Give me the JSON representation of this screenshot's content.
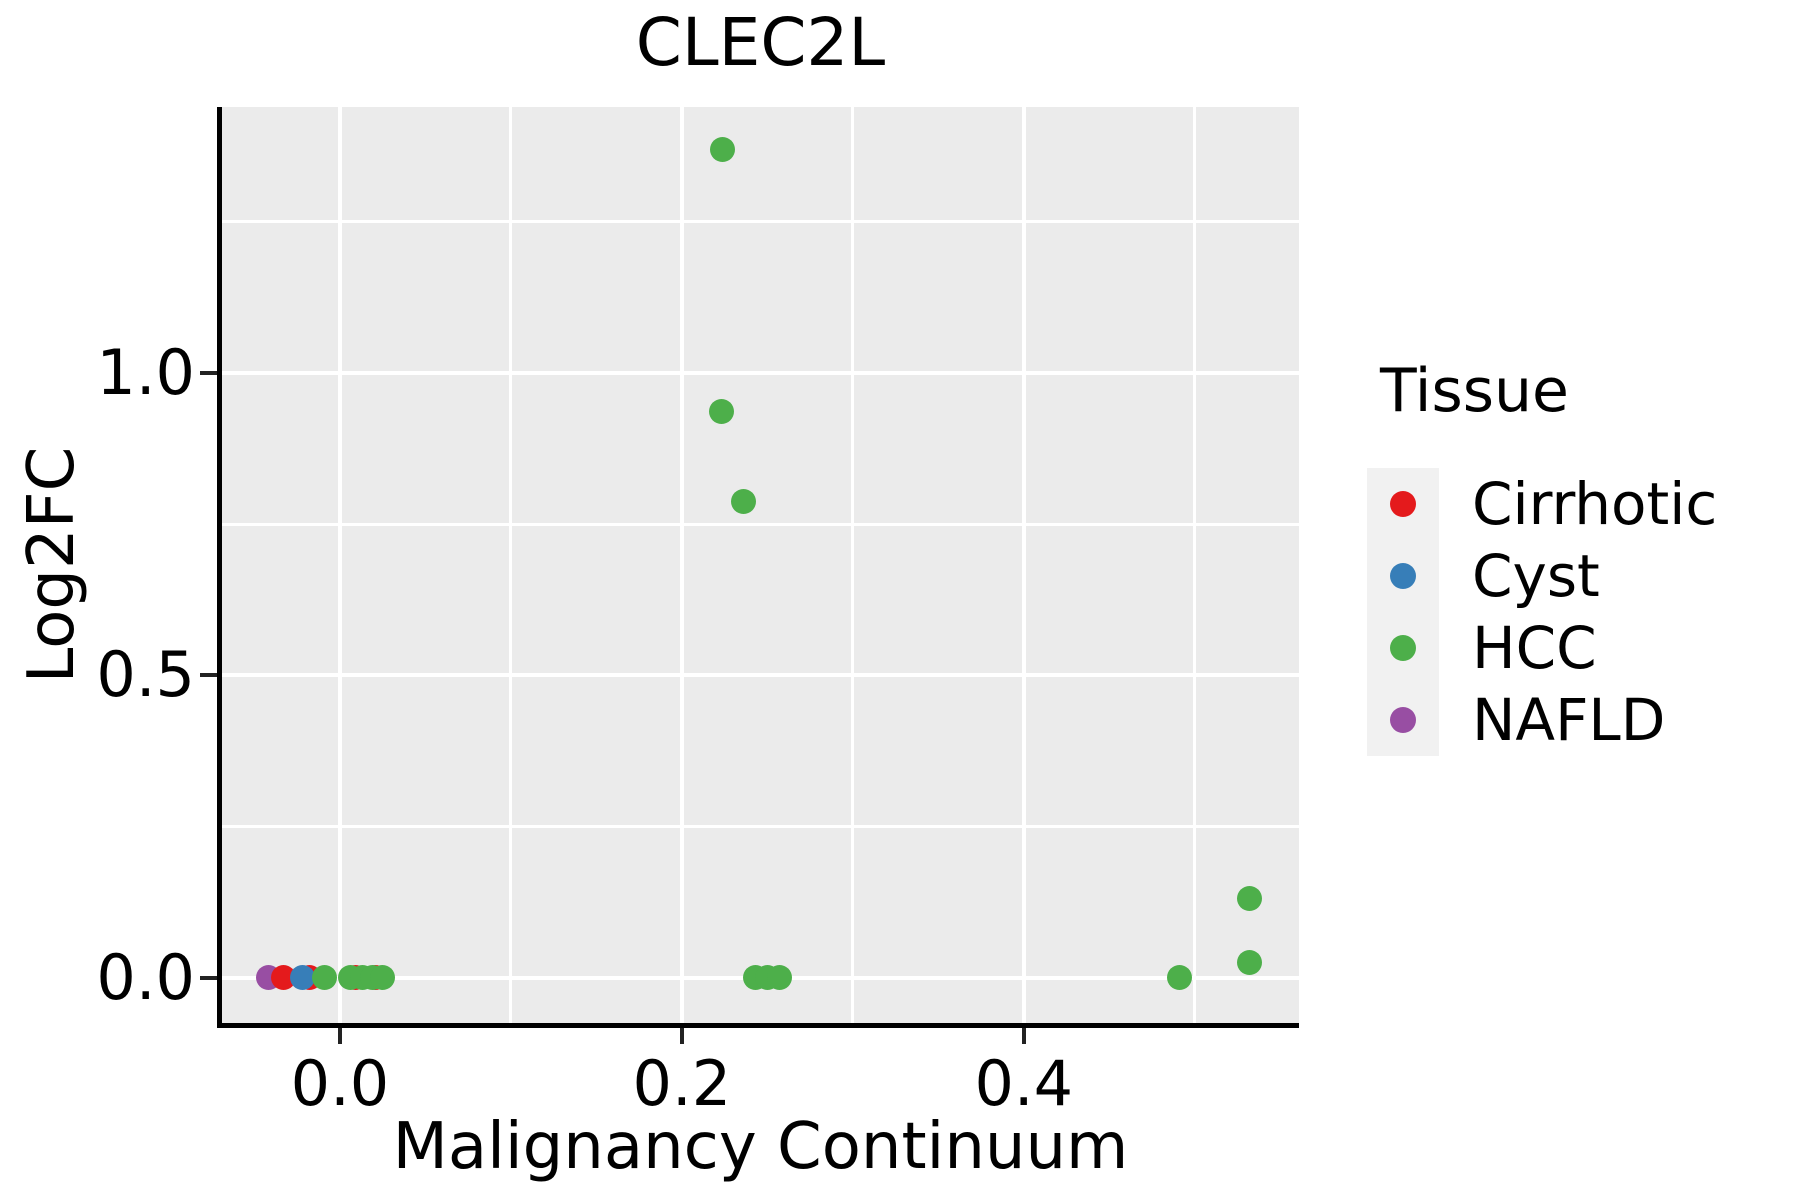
{
  "chart_data": {
    "type": "scatter",
    "title": "CLEC2L",
    "xlabel": "Malignancy Continuum",
    "ylabel": "Log2FC",
    "xlim": [
      -0.069,
      0.561
    ],
    "ylim": [
      -0.0744,
      1.4396
    ],
    "x_ticks": {
      "values": [
        0.0,
        0.2,
        0.4
      ],
      "labels": [
        "0.0",
        "0.2",
        "0.4"
      ]
    },
    "y_ticks": {
      "values": [
        0.0,
        0.5,
        1.0
      ],
      "labels": [
        "0.0",
        "0.5",
        "1.0"
      ]
    },
    "x_minor_ticks": [
      0.1,
      0.3,
      0.5
    ],
    "y_minor_ticks": [
      0.25,
      0.75,
      1.25
    ],
    "grid": "major and minor white gridlines on grey panel",
    "panel_bg": "#EBEBEB",
    "grid_color": "#FFFFFF",
    "legend": {
      "title": "Tissue",
      "position": "right",
      "entries": [
        {
          "label": "Cirrhotic",
          "color": "#E41A1C"
        },
        {
          "label": "Cyst",
          "color": "#377EB8"
        },
        {
          "label": "HCC",
          "color": "#4DAF4A"
        },
        {
          "label": "NAFLD",
          "color": "#984EA3"
        }
      ]
    },
    "series_colors": {
      "Cirrhotic": "#E41A1C",
      "Cyst": "#377EB8",
      "HCC": "#4DAF4A",
      "NAFLD": "#984EA3"
    },
    "points": [
      {
        "tissue": "NAFLD",
        "x": -0.042,
        "y": 0.0
      },
      {
        "tissue": "Cirrhotic",
        "x": -0.033,
        "y": 0.0
      },
      {
        "tissue": "Cirrhotic",
        "x": -0.018,
        "y": 0.0
      },
      {
        "tissue": "Cyst",
        "x": -0.022,
        "y": 0.0
      },
      {
        "tissue": "Cirrhotic",
        "x": 0.009,
        "y": 0.0
      },
      {
        "tissue": "Cirrhotic",
        "x": 0.021,
        "y": 0.0
      },
      {
        "tissue": "HCC",
        "x": -0.009,
        "y": 0.0
      },
      {
        "tissue": "HCC",
        "x": 0.006,
        "y": 0.0
      },
      {
        "tissue": "HCC",
        "x": 0.013,
        "y": 0.0
      },
      {
        "tissue": "HCC",
        "x": 0.019,
        "y": 0.0
      },
      {
        "tissue": "HCC",
        "x": 0.025,
        "y": 0.0
      },
      {
        "tissue": "HCC",
        "x": 0.243,
        "y": 0.0
      },
      {
        "tissue": "HCC",
        "x": 0.25,
        "y": 0.0
      },
      {
        "tissue": "HCC",
        "x": 0.257,
        "y": 0.0
      },
      {
        "tissue": "HCC",
        "x": 0.491,
        "y": 0.0
      },
      {
        "tissue": "HCC",
        "x": 0.532,
        "y": 0.132
      },
      {
        "tissue": "HCC",
        "x": 0.532,
        "y": 0.026
      },
      {
        "tissue": "HCC",
        "x": 0.224,
        "y": 1.37
      },
      {
        "tissue": "HCC",
        "x": 0.223,
        "y": 0.937
      },
      {
        "tissue": "HCC",
        "x": 0.236,
        "y": 0.787
      }
    ]
  }
}
